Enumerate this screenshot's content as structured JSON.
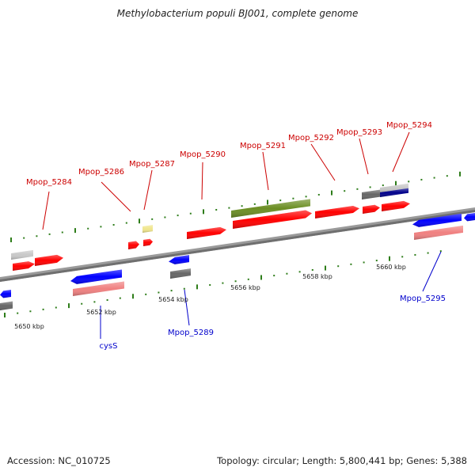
{
  "title": "Methylobacterium populi BJ001, complete genome",
  "footer": {
    "accession": "Accession: NC_010725",
    "topology": "Topology: circular; Length: 5,800,441 bp; Genes: 5,388"
  },
  "colors": {
    "plus_label": "#cc0000",
    "minus_label": "#0000cc",
    "backbone": "#8a8a8a",
    "tick": "#2e7d1a",
    "red_gene": "#ff0000",
    "blue_gene": "#0000ff",
    "pink_gene": "#f08080",
    "gray_gene": "#666666",
    "lightgray_gene": "#c8c8c8",
    "olive_gene": "#6b8e23",
    "yellow_gene": "#f0e68c",
    "navy_gene": "#00008b"
  },
  "scale_labels": [
    "5650 kbp",
    "5652 kbp",
    "5654 kbp",
    "5656 kbp",
    "5658 kbp",
    "5660 kbp"
  ],
  "gene_labels_top": [
    "Mpop_5284",
    "Mpop_5286",
    "Mpop_5287",
    "Mpop_5290",
    "Mpop_5291",
    "Mpop_5292",
    "Mpop_5293",
    "Mpop_5294"
  ],
  "gene_labels_bottom": [
    "cysS",
    "Mpop_5289",
    "Mpop_5295"
  ]
}
